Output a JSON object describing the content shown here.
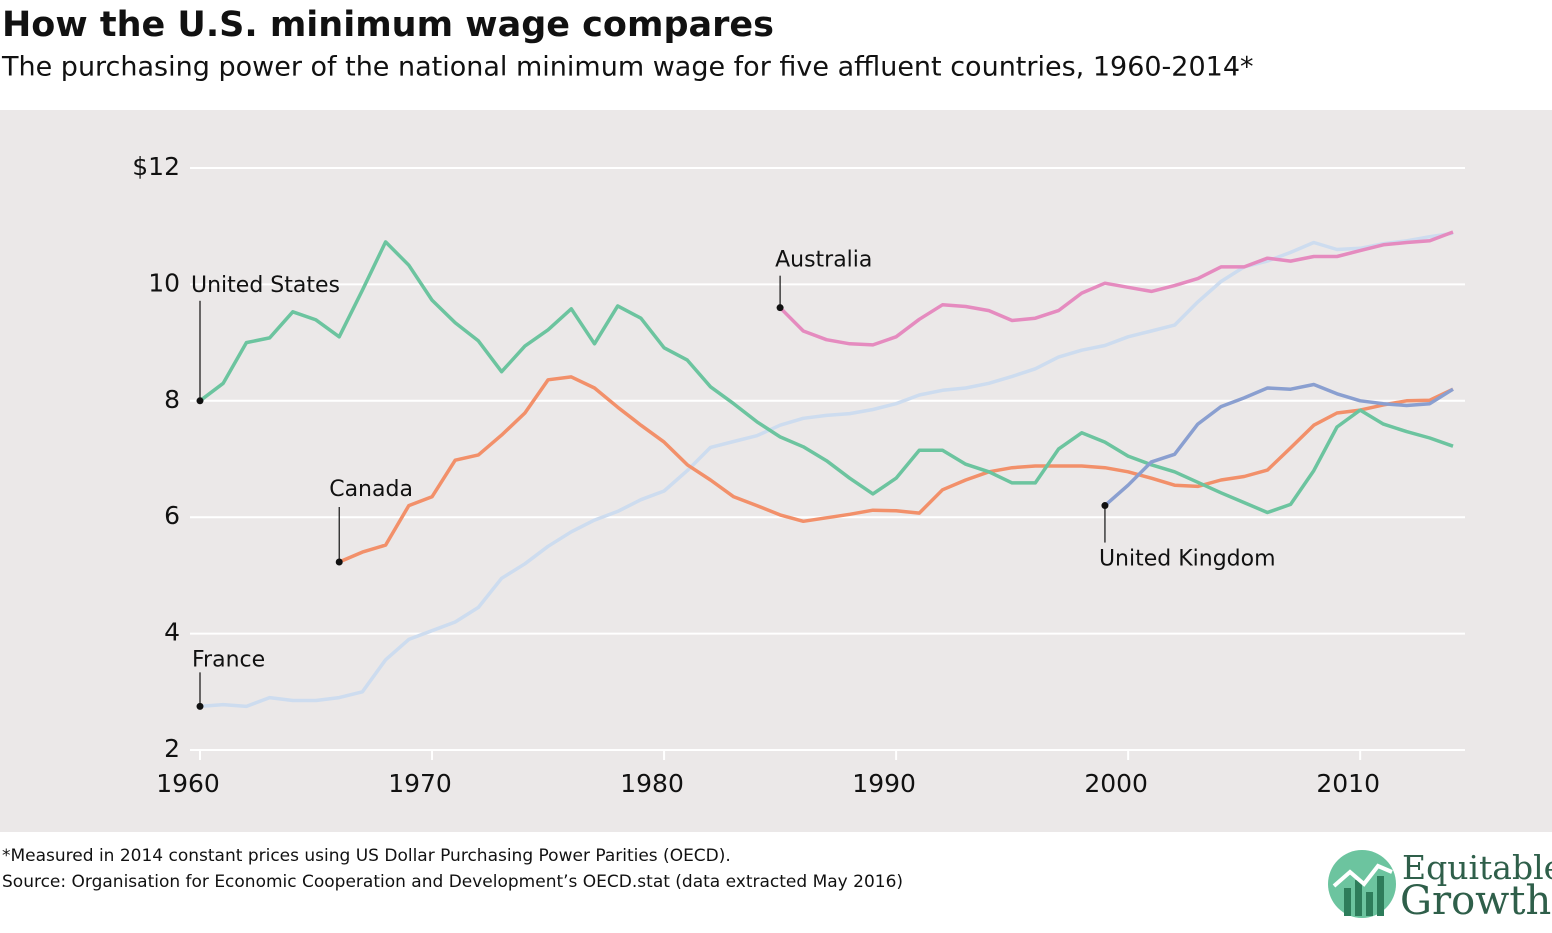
{
  "chart_data": {
    "type": "line",
    "title": "How the U.S. minimum wage compares",
    "subtitle": "The purchasing power of the national minimum wage for five affluent countries, 1960-2014*",
    "note": "*Measured in 2014 constant prices using US Dollar Purchasing Power Parities (OECD).",
    "source": "Source: Organisation for Economic Cooperation and Development’s OECD.stat (data extracted May 2016)",
    "logo": [
      "Equitable",
      "Growth"
    ],
    "x": [
      1960,
      1961,
      1962,
      1963,
      1964,
      1965,
      1966,
      1967,
      1968,
      1969,
      1970,
      1971,
      1972,
      1973,
      1974,
      1975,
      1976,
      1977,
      1978,
      1979,
      1980,
      1981,
      1982,
      1983,
      1984,
      1985,
      1986,
      1987,
      1988,
      1989,
      1990,
      1991,
      1992,
      1993,
      1994,
      1995,
      1996,
      1997,
      1998,
      1999,
      2000,
      2001,
      2002,
      2003,
      2004,
      2005,
      2006,
      2007,
      2008,
      2009,
      2010,
      2011,
      2012,
      2013,
      2014
    ],
    "xlim": [
      1960,
      2014
    ],
    "xticks": [
      1960,
      1970,
      1980,
      1990,
      2000,
      2010
    ],
    "ylim": [
      2,
      12
    ],
    "yticks": [
      2,
      4,
      6,
      8,
      10,
      {
        "value": 12,
        "label": "$12"
      }
    ],
    "grid": true,
    "series": [
      {
        "name": "France",
        "color": "#cddcef",
        "values": [
          2.75,
          2.78,
          2.75,
          2.9,
          2.85,
          2.85,
          2.9,
          3.0,
          3.55,
          3.9,
          4.05,
          4.2,
          4.45,
          4.95,
          5.2,
          5.5,
          5.75,
          5.95,
          6.1,
          6.3,
          6.45,
          6.8,
          7.2,
          7.3,
          7.4,
          7.58,
          7.7,
          7.75,
          7.78,
          7.85,
          7.95,
          8.1,
          8.18,
          8.22,
          8.3,
          8.42,
          8.55,
          8.75,
          8.87,
          8.95,
          9.1,
          9.2,
          9.3,
          9.7,
          10.05,
          10.3,
          10.4,
          10.55,
          10.72,
          10.6,
          10.62,
          10.7,
          10.75,
          10.82,
          10.88
        ]
      },
      {
        "name": "Canada",
        "color": "#f2906a",
        "values": [
          null,
          null,
          null,
          null,
          null,
          null,
          5.23,
          5.4,
          5.52,
          6.2,
          6.35,
          6.98,
          7.07,
          7.41,
          7.79,
          8.36,
          8.41,
          8.22,
          7.89,
          7.58,
          7.29,
          6.9,
          6.64,
          6.35,
          6.2,
          6.04,
          5.93,
          5.99,
          6.05,
          6.12,
          6.11,
          6.07,
          6.47,
          6.64,
          6.78,
          6.85,
          6.88,
          6.88,
          6.88,
          6.85,
          6.78,
          6.67,
          6.55,
          6.53,
          6.64,
          6.7,
          6.81,
          7.19,
          7.58,
          7.79,
          7.84,
          7.93,
          8.0,
          8.01,
          8.2
        ]
      },
      {
        "name": "United States",
        "color": "#6cc49f",
        "values": [
          8.0,
          8.3,
          9.0,
          9.08,
          9.53,
          9.39,
          9.1,
          9.9,
          10.73,
          10.33,
          9.73,
          9.34,
          9.03,
          8.5,
          8.94,
          9.22,
          9.58,
          8.98,
          9.63,
          9.42,
          8.91,
          8.7,
          8.24,
          7.95,
          7.64,
          7.38,
          7.21,
          6.97,
          6.67,
          6.4,
          6.67,
          7.15,
          7.15,
          6.91,
          6.78,
          6.59,
          6.59,
          7.17,
          7.45,
          7.29,
          7.05,
          6.9,
          6.78,
          6.6,
          6.42,
          6.25,
          6.08,
          6.22,
          6.8,
          7.55,
          7.84,
          7.6,
          7.47,
          7.36,
          7.22
        ]
      },
      {
        "name": "Australia",
        "color": "#e58bbf",
        "values": [
          null,
          null,
          null,
          null,
          null,
          null,
          null,
          null,
          null,
          null,
          null,
          null,
          null,
          null,
          null,
          null,
          null,
          null,
          null,
          null,
          null,
          null,
          null,
          null,
          null,
          9.6,
          9.2,
          9.05,
          8.98,
          8.96,
          9.1,
          9.4,
          9.65,
          9.62,
          9.55,
          9.38,
          9.42,
          9.55,
          9.85,
          10.02,
          9.95,
          9.88,
          9.98,
          10.1,
          10.3,
          10.3,
          10.45,
          10.4,
          10.48,
          10.48,
          10.58,
          10.68,
          10.72,
          10.75,
          10.9
        ]
      },
      {
        "name": "United Kingdom",
        "color": "#8a9fd0",
        "values": [
          null,
          null,
          null,
          null,
          null,
          null,
          null,
          null,
          null,
          null,
          null,
          null,
          null,
          null,
          null,
          null,
          null,
          null,
          null,
          null,
          null,
          null,
          null,
          null,
          null,
          null,
          null,
          null,
          null,
          null,
          null,
          null,
          null,
          null,
          null,
          null,
          null,
          null,
          null,
          6.2,
          6.55,
          6.95,
          7.08,
          7.6,
          7.9,
          8.05,
          8.22,
          8.2,
          8.28,
          8.12,
          8.0,
          7.95,
          7.92,
          7.95,
          8.2
        ]
      }
    ]
  }
}
